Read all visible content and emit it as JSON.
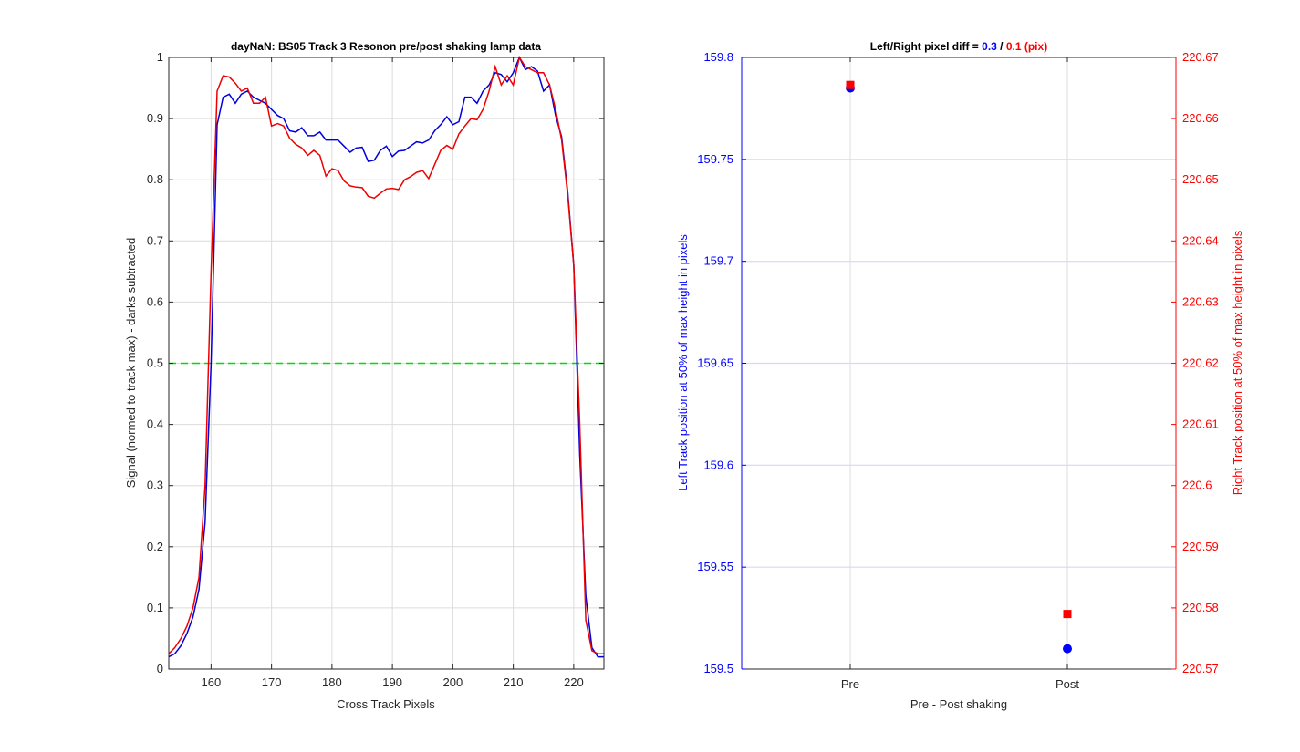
{
  "chart_data": [
    {
      "type": "line",
      "title": "dayNaN: BS05  Track 3 Resonon pre/post shaking lamp data",
      "xlabel": "Cross Track Pixels",
      "ylabel": "Signal (normed to track max) - darks subtracted",
      "xlim": [
        153,
        225
      ],
      "ylim": [
        0,
        1
      ],
      "xticks": [
        160,
        170,
        180,
        190,
        200,
        210,
        220
      ],
      "yticks": [
        0,
        0.1,
        0.2,
        0.3,
        0.4,
        0.5,
        0.6,
        0.7,
        0.8,
        0.9,
        1
      ],
      "xtick_labels": [
        "160",
        "170",
        "180",
        "190",
        "200",
        "210",
        "220"
      ],
      "ytick_labels": [
        "0",
        "0.1",
        "0.2",
        "0.3",
        "0.4",
        "0.5",
        "0.6",
        "0.7",
        "0.8",
        "0.9",
        "1"
      ],
      "grid": true,
      "threshold": {
        "y": 0.5,
        "color": "#00dd00",
        "style": "dashed"
      },
      "x": [
        153,
        154,
        155,
        156,
        157,
        158,
        159,
        160,
        161,
        162,
        163,
        164,
        165,
        166,
        167,
        168,
        169,
        170,
        171,
        172,
        173,
        174,
        175,
        176,
        177,
        178,
        179,
        180,
        181,
        182,
        183,
        184,
        185,
        186,
        187,
        188,
        189,
        190,
        191,
        192,
        193,
        194,
        195,
        196,
        197,
        198,
        199,
        200,
        201,
        202,
        203,
        204,
        205,
        206,
        207,
        208,
        209,
        210,
        211,
        212,
        213,
        214,
        215,
        216,
        217,
        218,
        219,
        220,
        221,
        222,
        223,
        224,
        225
      ],
      "series": [
        {
          "color": "#0000dd",
          "values": [
            0.02,
            0.025,
            0.038,
            0.058,
            0.085,
            0.13,
            0.24,
            0.5,
            0.89,
            0.935,
            0.94,
            0.925,
            0.94,
            0.945,
            0.935,
            0.93,
            0.925,
            0.915,
            0.905,
            0.9,
            0.88,
            0.878,
            0.885,
            0.872,
            0.872,
            0.878,
            0.865,
            0.865,
            0.865,
            0.855,
            0.845,
            0.852,
            0.853,
            0.83,
            0.832,
            0.848,
            0.855,
            0.838,
            0.847,
            0.848,
            0.855,
            0.862,
            0.86,
            0.865,
            0.88,
            0.89,
            0.903,
            0.89,
            0.895,
            0.935,
            0.935,
            0.925,
            0.945,
            0.955,
            0.975,
            0.972,
            0.96,
            0.975,
            1.0,
            0.98,
            0.985,
            0.978,
            0.945,
            0.955,
            0.905,
            0.87,
            0.78,
            0.66,
            0.35,
            0.12,
            0.035,
            0.02,
            0.02
          ]
        },
        {
          "color": "#ee0000",
          "values": [
            0.025,
            0.035,
            0.05,
            0.07,
            0.1,
            0.15,
            0.3,
            0.65,
            0.945,
            0.97,
            0.968,
            0.958,
            0.945,
            0.95,
            0.925,
            0.925,
            0.935,
            0.888,
            0.892,
            0.888,
            0.868,
            0.858,
            0.852,
            0.84,
            0.848,
            0.84,
            0.806,
            0.818,
            0.815,
            0.798,
            0.79,
            0.788,
            0.787,
            0.773,
            0.77,
            0.778,
            0.785,
            0.786,
            0.784,
            0.8,
            0.805,
            0.812,
            0.815,
            0.802,
            0.825,
            0.848,
            0.856,
            0.85,
            0.875,
            0.888,
            0.9,
            0.898,
            0.915,
            0.945,
            0.985,
            0.955,
            0.97,
            0.955,
            1.0,
            0.985,
            0.98,
            0.975,
            0.975,
            0.955,
            0.915,
            0.865,
            0.775,
            0.66,
            0.4,
            0.08,
            0.03,
            0.025,
            0.025
          ]
        }
      ]
    },
    {
      "type": "scatter",
      "title_parts": [
        {
          "text": "Left/Right pixel diff = ",
          "color": "#000000"
        },
        {
          "text": "0.3",
          "color": "#0000ff"
        },
        {
          "text": " / ",
          "color": "#000000"
        },
        {
          "text": "0.1 (pix)",
          "color": "#ff0000"
        }
      ],
      "xlabel": "Pre - Post shaking",
      "categories": [
        "Pre",
        "Post"
      ],
      "grid": true,
      "left_axis": {
        "label": "Left Track position at 50% of max height in pixels",
        "color": "#0000ff",
        "ylim": [
          159.5,
          159.8
        ],
        "ticks": [
          159.5,
          159.55,
          159.6,
          159.65,
          159.7,
          159.75,
          159.8
        ],
        "tick_labels": [
          "159.5",
          "159.55",
          "159.6",
          "159.65",
          "159.7",
          "159.75",
          "159.8"
        ],
        "values": [
          159.785,
          159.51
        ],
        "marker": "circle"
      },
      "right_axis": {
        "label": "Right Track position at 50% of max height in pixels",
        "color": "#ff0000",
        "ylim": [
          220.57,
          220.67
        ],
        "ticks": [
          220.57,
          220.58,
          220.59,
          220.6,
          220.61,
          220.62,
          220.63,
          220.64,
          220.65,
          220.66,
          220.67
        ],
        "tick_labels": [
          "220.57",
          "220.58",
          "220.59",
          "220.6",
          "220.61",
          "220.62",
          "220.63",
          "220.64",
          "220.65",
          "220.66",
          "220.67"
        ],
        "values": [
          220.6655,
          220.579
        ],
        "marker": "square"
      }
    }
  ]
}
